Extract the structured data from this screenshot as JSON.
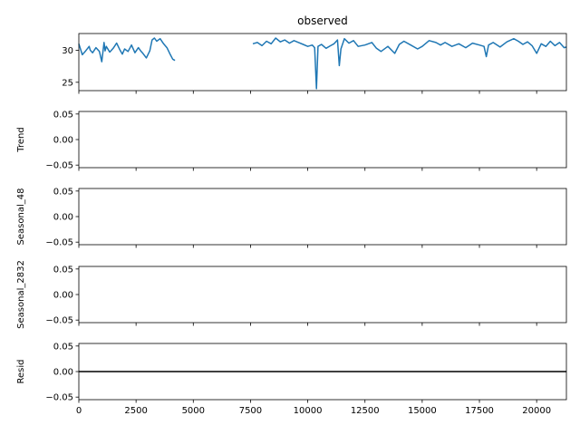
{
  "chart_data": {
    "type": "line",
    "title": "observed",
    "color": "#1f77b4",
    "x_range": [
      0,
      21300
    ],
    "x_ticks": [
      0,
      2500,
      5000,
      7500,
      10000,
      12500,
      15000,
      17500,
      20000
    ],
    "x_tick_labels": [
      "0",
      "2500",
      "5000",
      "7500",
      "10000",
      "12500",
      "15000",
      "17500",
      "20000"
    ],
    "panels": [
      {
        "name": "observed",
        "ylabel": "",
        "ylim": [
          23.7,
          32.6
        ],
        "y_ticks": [
          25,
          30
        ],
        "y_tick_labels": [
          "25",
          "30"
        ],
        "series": [
          {
            "x": [
              0,
              150,
              300,
              450,
              500,
              600,
              750,
              900,
              1000,
              1100,
              1150,
              1200,
              1350,
              1500,
              1650,
              1800,
              1900,
              2000,
              2150,
              2300,
              2450,
              2600,
              2700,
              2800,
              2950,
              3100,
              3200,
              3300,
              3400,
              3550,
              3700,
              3850,
              4000,
              4100,
              4200
            ],
            "y": [
              31.0,
              29.3,
              29.9,
              30.6,
              30.0,
              29.6,
              30.4,
              29.8,
              28.2,
              31.2,
              29.9,
              30.6,
              29.7,
              30.3,
              31.1,
              30.0,
              29.4,
              30.2,
              29.8,
              30.8,
              29.6,
              30.4,
              29.9,
              29.5,
              28.8,
              29.9,
              31.6,
              31.9,
              31.4,
              31.8,
              31.0,
              30.4,
              29.3,
              28.6,
              28.4
            ]
          },
          {
            "x": [
              7600,
              7800,
              8000,
              8200,
              8400,
              8600,
              8800,
              9000,
              9200,
              9400,
              9600,
              9800,
              10000,
              10200,
              10300,
              10380,
              10450,
              10600,
              10800,
              11000,
              11150,
              11300,
              11380,
              11450,
              11600,
              11800,
              12000,
              12200,
              12500,
              12800,
              13000,
              13200,
              13500,
              13800,
              14000,
              14200,
              14500,
              14800,
              15000,
              15300,
              15600,
              15800,
              16000,
              16300,
              16600,
              16900,
              17200,
              17500,
              17700,
              17800,
              17900,
              18100,
              18400,
              18700,
              19000,
              19200,
              19400,
              19600,
              19800,
              20000,
              20200,
              20400,
              20600,
              20800,
              21000,
              21200,
              21300
            ],
            "y": [
              31.0,
              31.2,
              30.7,
              31.4,
              31.0,
              31.9,
              31.3,
              31.6,
              31.1,
              31.5,
              31.2,
              30.9,
              30.6,
              30.8,
              30.4,
              24.0,
              30.6,
              30.9,
              30.3,
              30.7,
              31.0,
              31.6,
              27.6,
              30.2,
              31.8,
              31.1,
              31.5,
              30.6,
              30.8,
              31.2,
              30.3,
              29.8,
              30.6,
              29.5,
              30.9,
              31.4,
              30.8,
              30.2,
              30.6,
              31.5,
              31.2,
              30.8,
              31.2,
              30.6,
              31.0,
              30.4,
              31.1,
              30.8,
              30.6,
              29.0,
              30.8,
              31.2,
              30.5,
              31.3,
              31.8,
              31.4,
              30.9,
              31.3,
              30.7,
              29.5,
              31.0,
              30.6,
              31.4,
              30.7,
              31.2,
              30.4,
              30.5
            ]
          }
        ]
      },
      {
        "name": "trend",
        "ylabel": "Trend",
        "ylim": [
          -0.055,
          0.055
        ],
        "y_ticks": [
          -0.05,
          0.0,
          0.05
        ],
        "y_tick_labels": [
          "−0.05",
          "0.00",
          "0.05"
        ],
        "series": []
      },
      {
        "name": "seasonal-48",
        "ylabel": "Seasonal_48",
        "ylim": [
          -0.055,
          0.055
        ],
        "y_ticks": [
          -0.05,
          0.0,
          0.05
        ],
        "y_tick_labels": [
          "−0.05",
          "0.00",
          "0.05"
        ],
        "series": []
      },
      {
        "name": "seasonal-2832",
        "ylabel": "Seasonal_2832",
        "ylim": [
          -0.055,
          0.055
        ],
        "y_ticks": [
          -0.05,
          0.0,
          0.05
        ],
        "y_tick_labels": [
          "−0.05",
          "0.00",
          "0.05"
        ],
        "series": []
      },
      {
        "name": "resid",
        "ylabel": "Resid",
        "ylim": [
          -0.055,
          0.055
        ],
        "y_ticks": [
          -0.05,
          0.0,
          0.05
        ],
        "y_tick_labels": [
          "−0.05",
          "0.00",
          "0.05"
        ],
        "hline": 0,
        "hline_color": "#000000",
        "series": []
      }
    ]
  }
}
